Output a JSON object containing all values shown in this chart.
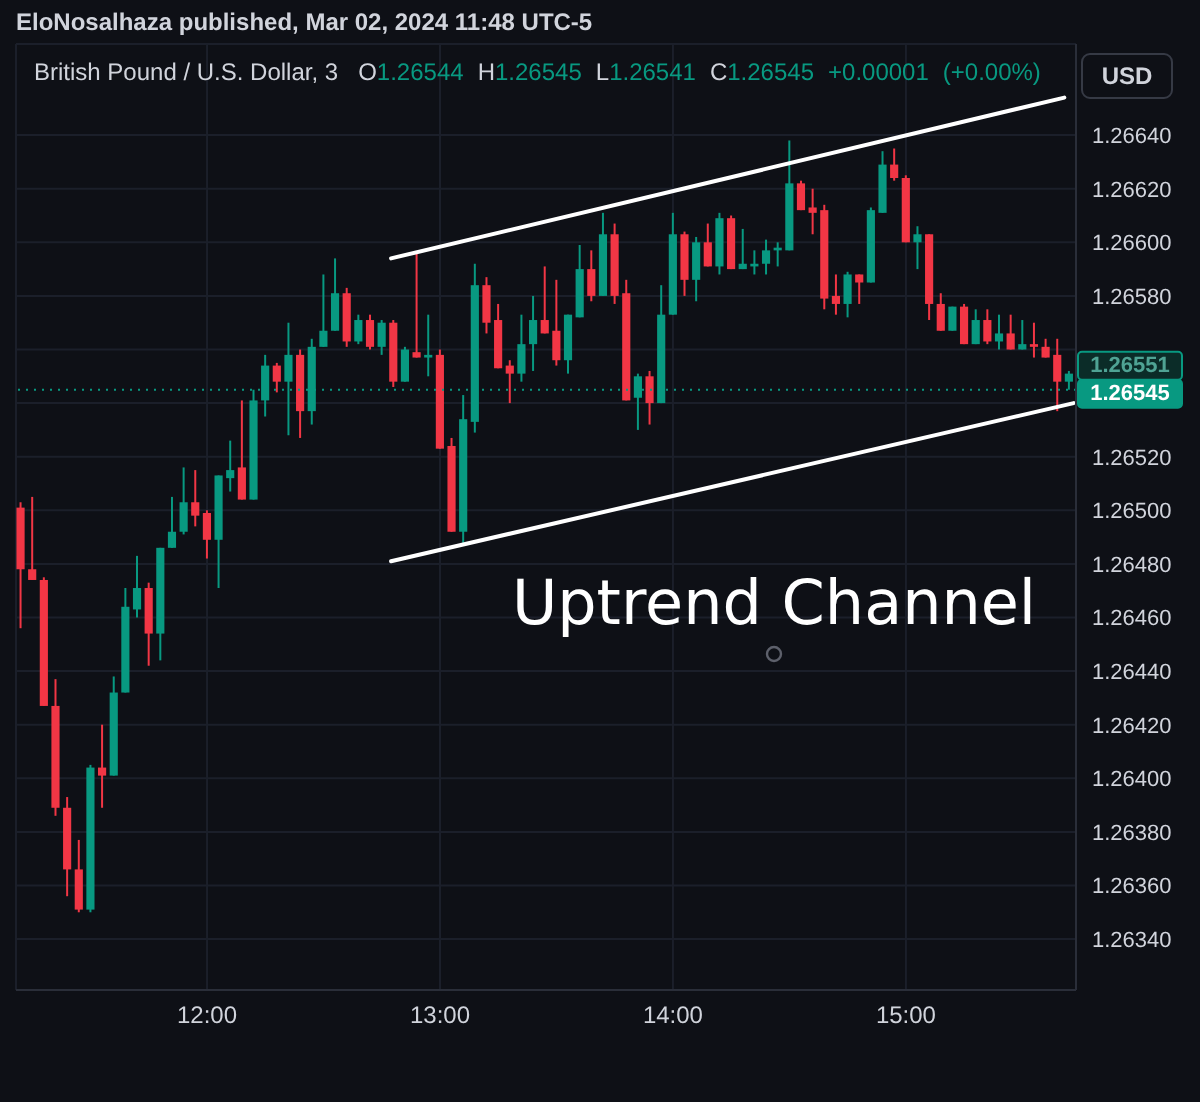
{
  "chart_data": {
    "type": "candlestick",
    "title": "British Pound / U.S. Dollar, 3",
    "subtitle": "O1.26544 H1.26545 L1.26541 C1.26545 +0.00001 (+0.00%)",
    "ylabel": "USD",
    "annotations": [
      "EloNosalhaza published, Mar 02, 2024 11:48 UTC-5",
      "Uptrend Channel",
      "1.26551"
    ],
    "x": [
      11.2,
      11.25,
      11.3,
      11.35,
      11.4,
      11.45,
      11.5,
      11.55,
      11.6,
      11.65,
      11.7,
      11.75,
      11.8,
      11.85,
      11.9,
      11.95,
      12,
      12.05,
      12.1,
      12.15,
      12.2,
      12.25,
      12.3,
      12.35,
      12.4,
      12.45,
      12.5,
      12.55,
      12.6,
      12.65,
      12.7,
      12.75,
      12.8,
      12.85,
      12.9,
      12.95,
      13,
      13.05,
      13.1,
      13.15,
      13.2,
      13.25,
      13.3,
      13.35,
      13.4,
      13.45,
      13.5,
      13.55,
      13.6,
      13.65,
      13.7,
      13.75,
      13.8,
      13.85,
      13.9,
      13.95,
      14,
      14.05,
      14.1,
      14.15,
      14.2,
      14.25,
      14.3,
      14.35,
      14.4,
      14.45,
      14.5,
      14.55,
      14.6,
      14.65,
      14.7,
      14.75,
      14.8,
      14.85,
      14.9,
      14.95,
      15,
      15.05,
      15.1,
      15.15,
      15.2,
      15.25,
      15.3,
      15.35,
      15.4,
      15.45,
      15.5,
      15.55,
      15.6,
      15.65,
      15.7
    ],
    "ohlc": [
      [
        1.26501,
        1.26503,
        1.26456,
        1.26478
      ],
      [
        1.26478,
        1.26505,
        1.26474,
        1.26474
      ],
      [
        1.26474,
        1.26475,
        1.26427,
        1.26427
      ],
      [
        1.26427,
        1.26437,
        1.26386,
        1.26389
      ],
      [
        1.26389,
        1.26393,
        1.26356,
        1.26366
      ],
      [
        1.26366,
        1.26377,
        1.2635,
        1.26351
      ],
      [
        1.26351,
        1.26405,
        1.2635,
        1.26404
      ],
      [
        1.26404,
        1.2642,
        1.26389,
        1.26401
      ],
      [
        1.26401,
        1.26438,
        1.26401,
        1.26432
      ],
      [
        1.26432,
        1.26471,
        1.26432,
        1.26464
      ],
      [
        1.26463,
        1.26483,
        1.2646,
        1.26471
      ],
      [
        1.26471,
        1.26473,
        1.26442,
        1.26454
      ],
      [
        1.26454,
        1.26486,
        1.26444,
        1.26486
      ],
      [
        1.26486,
        1.26505,
        1.26486,
        1.26492
      ],
      [
        1.26492,
        1.26516,
        1.26491,
        1.26503
      ],
      [
        1.26503,
        1.26515,
        1.26494,
        1.26498
      ],
      [
        1.26499,
        1.265,
        1.26482,
        1.26489
      ],
      [
        1.26489,
        1.26513,
        1.26471,
        1.26513
      ],
      [
        1.26512,
        1.26526,
        1.26507,
        1.26515
      ],
      [
        1.26516,
        1.26541,
        1.26504,
        1.26504
      ],
      [
        1.26504,
        1.26545,
        1.26504,
        1.26541
      ],
      [
        1.26541,
        1.26558,
        1.26535,
        1.26554
      ],
      [
        1.26554,
        1.26555,
        1.26544,
        1.26548
      ],
      [
        1.26548,
        1.2657,
        1.26528,
        1.26558
      ],
      [
        1.26558,
        1.2656,
        1.26527,
        1.26537
      ],
      [
        1.26537,
        1.26564,
        1.26532,
        1.26561
      ],
      [
        1.26561,
        1.26588,
        1.26561,
        1.26567
      ],
      [
        1.26567,
        1.26594,
        1.26567,
        1.26581
      ],
      [
        1.26581,
        1.26583,
        1.26561,
        1.26563
      ],
      [
        1.26563,
        1.26573,
        1.26562,
        1.26571
      ],
      [
        1.26571,
        1.26573,
        1.2656,
        1.26561
      ],
      [
        1.26561,
        1.26571,
        1.26558,
        1.2657
      ],
      [
        1.2657,
        1.26571,
        1.26546,
        1.26548
      ],
      [
        1.26548,
        1.26561,
        1.26548,
        1.2656
      ],
      [
        1.26559,
        1.26596,
        1.26557,
        1.26557
      ],
      [
        1.26557,
        1.26573,
        1.2655,
        1.26558
      ],
      [
        1.26558,
        1.2656,
        1.26523,
        1.26523
      ],
      [
        1.26524,
        1.26527,
        1.26492,
        1.26492
      ],
      [
        1.26492,
        1.26543,
        1.26487,
        1.26534
      ],
      [
        1.26533,
        1.26592,
        1.26529,
        1.26584
      ],
      [
        1.26584,
        1.26587,
        1.26566,
        1.2657
      ],
      [
        1.26571,
        1.26577,
        1.26553,
        1.26553
      ],
      [
        1.26554,
        1.26556,
        1.2654,
        1.26551
      ],
      [
        1.26551,
        1.26573,
        1.26548,
        1.26562
      ],
      [
        1.26562,
        1.2658,
        1.26552,
        1.26571
      ],
      [
        1.26571,
        1.26591,
        1.26566,
        1.26566
      ],
      [
        1.26567,
        1.26586,
        1.26554,
        1.26556
      ],
      [
        1.26556,
        1.26573,
        1.26551,
        1.26573
      ],
      [
        1.26572,
        1.26599,
        1.26572,
        1.2659
      ],
      [
        1.2659,
        1.26597,
        1.26578,
        1.2658
      ],
      [
        1.2658,
        1.26611,
        1.2658,
        1.26603
      ],
      [
        1.26603,
        1.26607,
        1.26577,
        1.2658
      ],
      [
        1.26581,
        1.26586,
        1.26541,
        1.26541
      ],
      [
        1.26542,
        1.26551,
        1.2653,
        1.2655
      ],
      [
        1.2655,
        1.26552,
        1.26532,
        1.2654
      ],
      [
        1.2654,
        1.26584,
        1.2654,
        1.26573
      ],
      [
        1.26573,
        1.26611,
        1.26573,
        1.26603
      ],
      [
        1.26603,
        1.26604,
        1.2658,
        1.26586
      ],
      [
        1.26586,
        1.26602,
        1.26578,
        1.266
      ],
      [
        1.266,
        1.26607,
        1.26591,
        1.26591
      ],
      [
        1.26591,
        1.26611,
        1.26588,
        1.26609
      ],
      [
        1.26609,
        1.2661,
        1.2659,
        1.2659
      ],
      [
        1.2659,
        1.26605,
        1.2659,
        1.26592
      ],
      [
        1.26591,
        1.26597,
        1.26588,
        1.26592
      ],
      [
        1.26592,
        1.26601,
        1.26588,
        1.26597
      ],
      [
        1.26597,
        1.266,
        1.26591,
        1.26598
      ],
      [
        1.26597,
        1.26638,
        1.26597,
        1.26622
      ],
      [
        1.26622,
        1.26623,
        1.26612,
        1.26612
      ],
      [
        1.26613,
        1.2662,
        1.26603,
        1.26611
      ],
      [
        1.26612,
        1.26614,
        1.26575,
        1.26579
      ],
      [
        1.2658,
        1.26588,
        1.26573,
        1.26577
      ],
      [
        1.26577,
        1.26589,
        1.26572,
        1.26588
      ],
      [
        1.26588,
        1.26588,
        1.26577,
        1.26585
      ],
      [
        1.26585,
        1.26613,
        1.26585,
        1.26612
      ],
      [
        1.26611,
        1.26634,
        1.26611,
        1.26629
      ],
      [
        1.26629,
        1.26635,
        1.26623,
        1.26624
      ],
      [
        1.26624,
        1.26625,
        1.266,
        1.266
      ],
      [
        1.266,
        1.26606,
        1.2659,
        1.26603
      ],
      [
        1.26603,
        1.26603,
        1.26571,
        1.26577
      ],
      [
        1.26577,
        1.26581,
        1.26567,
        1.26567
      ],
      [
        1.26567,
        1.26576,
        1.26567,
        1.26576
      ],
      [
        1.26576,
        1.26577,
        1.26562,
        1.26562
      ],
      [
        1.26562,
        1.26575,
        1.26562,
        1.26571
      ],
      [
        1.26571,
        1.26575,
        1.26562,
        1.26563
      ],
      [
        1.26563,
        1.26573,
        1.2656,
        1.26566
      ],
      [
        1.26566,
        1.26573,
        1.2656,
        1.2656
      ],
      [
        1.2656,
        1.26571,
        1.2656,
        1.26562
      ],
      [
        1.26562,
        1.2657,
        1.26557,
        1.26561
      ],
      [
        1.26561,
        1.26564,
        1.26557,
        1.26557
      ],
      [
        1.26558,
        1.26564,
        1.26537,
        1.26548
      ],
      [
        1.26548,
        1.26552,
        1.26545,
        1.26551
      ]
    ],
    "colors": [
      "#f23645",
      "#f23645",
      "#f23645",
      "#f23645",
      "#f23645",
      "#f23645",
      "#089981",
      "#f23645",
      "#089981",
      "#089981",
      "#089981",
      "#f23645",
      "#089981",
      "#089981",
      "#089981",
      "#f23645",
      "#f23645",
      "#089981",
      "#089981",
      "#f23645",
      "#089981",
      "#089981",
      "#f23645",
      "#089981",
      "#f23645",
      "#089981",
      "#089981",
      "#089981",
      "#f23645",
      "#089981",
      "#f23645",
      "#089981",
      "#f23645",
      "#089981",
      "#f23645",
      "#089981",
      "#f23645",
      "#f23645",
      "#089981",
      "#089981",
      "#f23645",
      "#f23645",
      "#f23645",
      "#089981",
      "#089981",
      "#f23645",
      "#f23645",
      "#089981",
      "#089981",
      "#f23645",
      "#089981",
      "#f23645",
      "#f23645",
      "#089981",
      "#f23645",
      "#089981",
      "#089981",
      "#f23645",
      "#089981",
      "#f23645",
      "#089981",
      "#f23645",
      "#089981",
      "#089981",
      "#089981",
      "#089981",
      "#089981",
      "#f23645",
      "#f23645",
      "#f23645",
      "#f23645",
      "#089981",
      "#f23645",
      "#089981",
      "#089981",
      "#f23645",
      "#f23645",
      "#089981",
      "#f23645",
      "#f23645",
      "#089981",
      "#f23645",
      "#089981",
      "#f23645",
      "#089981",
      "#f23645",
      "#089981",
      "#f23645",
      "#f23645",
      "#f23645",
      "#089981"
    ],
    "series": [
      {
        "type": "line",
        "x": [
          12.79,
          15.68
        ],
        "values": [
          1.26594,
          1.26654
        ],
        "color": "#ffffff"
      },
      {
        "type": "line",
        "x": [
          12.79,
          15.72
        ],
        "values": [
          1.26481,
          1.2654
        ],
        "color": "#ffffff"
      }
    ],
    "ref_lines": [
      {
        "axis": "y",
        "value": 1.26545,
        "label": "1.26545",
        "color": "#089981",
        "line_style": "dotted"
      }
    ],
    "xlim": [
      11.18,
      15.73
    ],
    "xticks": [
      {
        "value": 12,
        "label": "12:00"
      },
      {
        "value": 13,
        "label": "13:00"
      },
      {
        "value": 14,
        "label": "14:00"
      },
      {
        "value": 15,
        "label": "15:00"
      }
    ],
    "ylim": [
      1.26321,
      1.26674
    ],
    "yticks": [
      {
        "value": 1.2634,
        "label": "1.26340"
      },
      {
        "value": 1.2636,
        "label": "1.26360"
      },
      {
        "value": 1.2638,
        "label": "1.26380"
      },
      {
        "value": 1.264,
        "label": "1.26400"
      },
      {
        "value": 1.2642,
        "label": "1.26420"
      },
      {
        "value": 1.2644,
        "label": "1.26440"
      },
      {
        "value": 1.2646,
        "label": "1.26460"
      },
      {
        "value": 1.2648,
        "label": "1.26480"
      },
      {
        "value": 1.265,
        "label": "1.26500"
      },
      {
        "value": 1.2652,
        "label": "1.26520"
      },
      {
        "value": 1.2654,
        "label": null
      },
      {
        "value": 1.2656,
        "label": null
      },
      {
        "value": 1.2658,
        "label": "1.26580"
      },
      {
        "value": 1.266,
        "label": "1.26600"
      },
      {
        "value": 1.2662,
        "label": "1.26620"
      },
      {
        "value": 1.2664,
        "label": "1.26640"
      }
    ],
    "grid": true,
    "marker": "none"
  }
}
